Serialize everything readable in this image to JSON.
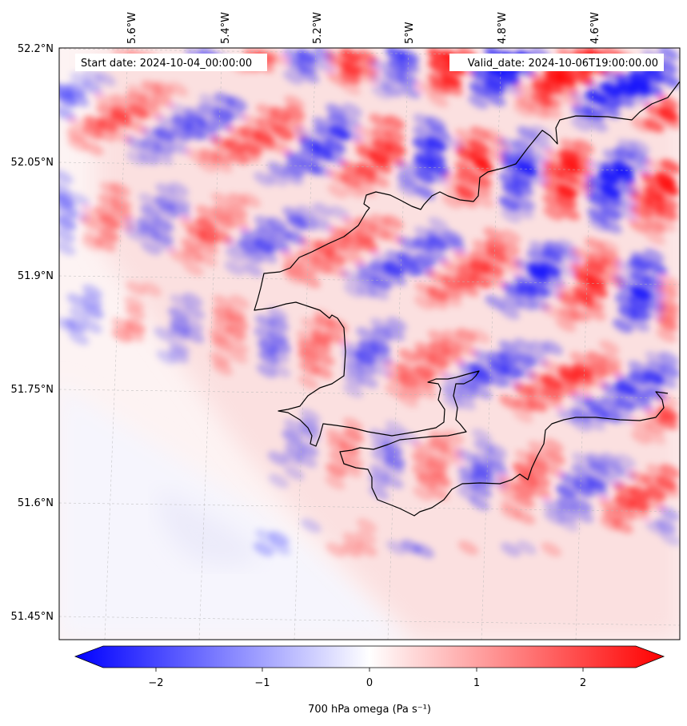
{
  "map": {
    "start_date": "Start date: 2024-10-04_00:00:00",
    "valid_date": "Valid_date: 2024-10-06T19:00:00.00",
    "lon_labels": [
      "5.6°W",
      "5.4°W",
      "5.2°W",
      "5°W",
      "4.8°W",
      "4.6°W"
    ],
    "lat_labels": [
      "52.2°N",
      "52.05°N",
      "51.9°N",
      "51.75°N",
      "51.6°N",
      "51.45°N"
    ]
  },
  "colorbar": {
    "label": "700 hPa omega (Pa s⁻¹)",
    "tick_labels": [
      "−2",
      "−1",
      "0",
      "1",
      "2"
    ],
    "range": [
      -2.5,
      2.5
    ],
    "colormap": [
      "#0000ff",
      "#ffffff",
      "#ff0000"
    ]
  }
}
